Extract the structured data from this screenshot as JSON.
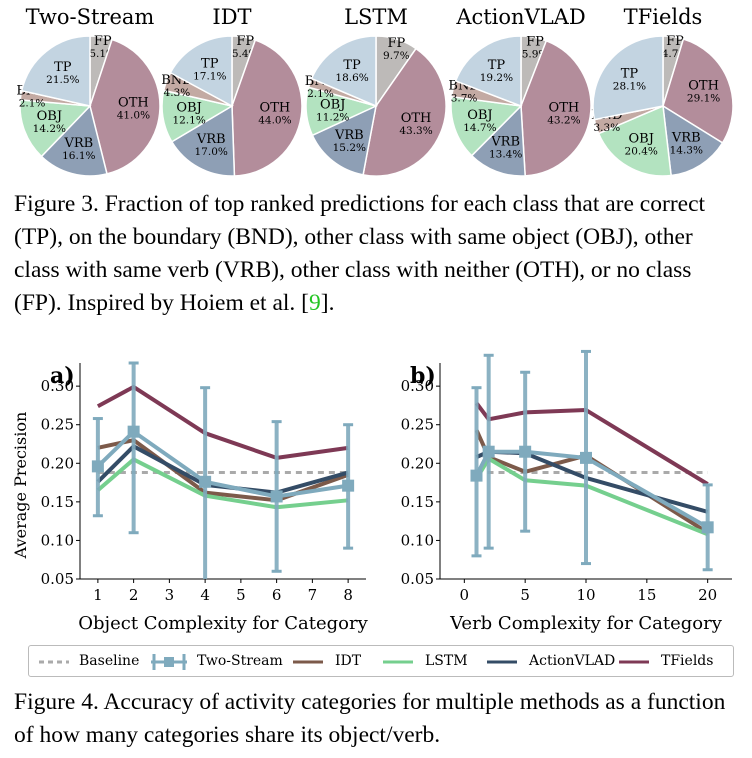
{
  "figure3": {
    "caption_label": "Figure 3.",
    "caption_text_a": " Fraction of top ranked predictions for each class that are correct (TP), on the boundary (BND), other class with same object (OBJ), other class with same verb (VRB), other class with neither (OTH), or no class (FP). Inspired by Hoiem et al. [",
    "caption_ref": "9",
    "caption_text_b": "]."
  },
  "figure4": {
    "caption_label": "Figure 4.",
    "caption_text": " Accuracy of activity categories for multiple methods as a function of how many categories share its object/verb."
  },
  "colors": {
    "TP": "#c3d4e1",
    "FP": "#bdbab8",
    "OTH": "#b38d9b",
    "VRB": "#8e9fb5",
    "OBJ": "#b3e3c0",
    "BND": "#c3aaa3",
    "Baseline": "#aaaaaa",
    "Two-Stream": "#7faabd",
    "IDT": "#7c5a4a",
    "LSTM": "#75cf8e",
    "ActionVLAD": "#344c66",
    "TFields": "#7e3955"
  },
  "chart_data": [
    {
      "type": "pie",
      "title": "Two-Stream",
      "slices": [
        {
          "label": "TP",
          "value": 21.5,
          "text": "21.5%"
        },
        {
          "label": "FP",
          "value": 5.1,
          "text": "5.1%"
        },
        {
          "label": "OTH",
          "value": 41.0,
          "text": "41.0%"
        },
        {
          "label": "VRB",
          "value": 16.1,
          "text": "16.1%"
        },
        {
          "label": "OBJ",
          "value": 14.2,
          "text": "14.2%"
        },
        {
          "label": "BND",
          "value": 2.1,
          "text": "2.1%"
        }
      ]
    },
    {
      "type": "pie",
      "title": "IDT",
      "slices": [
        {
          "label": "TP",
          "value": 17.1,
          "text": "17.1%"
        },
        {
          "label": "FP",
          "value": 5.4,
          "text": "5.4%"
        },
        {
          "label": "OTH",
          "value": 44.0,
          "text": "44.0%"
        },
        {
          "label": "VRB",
          "value": 17.0,
          "text": "17.0%"
        },
        {
          "label": "OBJ",
          "value": 12.1,
          "text": "12.1%"
        },
        {
          "label": "BND",
          "value": 4.3,
          "text": "4.3%"
        }
      ]
    },
    {
      "type": "pie",
      "title": "LSTM",
      "slices": [
        {
          "label": "TP",
          "value": 18.6,
          "text": "18.6%"
        },
        {
          "label": "FP",
          "value": 9.7,
          "text": "9.7%"
        },
        {
          "label": "OTH",
          "value": 43.3,
          "text": "43.3%"
        },
        {
          "label": "VRB",
          "value": 15.2,
          "text": "15.2%"
        },
        {
          "label": "OBJ",
          "value": 11.2,
          "text": "11.2%"
        },
        {
          "label": "BND",
          "value": 2.1,
          "text": "2.1%"
        }
      ]
    },
    {
      "type": "pie",
      "title": "ActionVLAD",
      "slices": [
        {
          "label": "TP",
          "value": 19.2,
          "text": "19.2%"
        },
        {
          "label": "FP",
          "value": 5.9,
          "text": "5.9%"
        },
        {
          "label": "OTH",
          "value": 43.2,
          "text": "43.2%"
        },
        {
          "label": "VRB",
          "value": 13.4,
          "text": "13.4%"
        },
        {
          "label": "OBJ",
          "value": 14.7,
          "text": "14.7%"
        },
        {
          "label": "BND",
          "value": 3.7,
          "text": "3.7%"
        }
      ]
    },
    {
      "type": "pie",
      "title": "TFields",
      "slices": [
        {
          "label": "TP",
          "value": 28.1,
          "text": "28.1%"
        },
        {
          "label": "FP",
          "value": 4.7,
          "text": "4.7%"
        },
        {
          "label": "OTH",
          "value": 29.1,
          "text": "29.1%"
        },
        {
          "label": "VRB",
          "value": 14.3,
          "text": "14.3%"
        },
        {
          "label": "OBJ",
          "value": 20.4,
          "text": "20.4%"
        },
        {
          "label": "BND",
          "value": 3.3,
          "text": "3.3%"
        }
      ]
    },
    {
      "type": "line",
      "panel_label": "a)",
      "xlabel": "Object Complexity for Category",
      "ylabel": "Average Precision",
      "xlim": [
        0.5,
        8.5
      ],
      "ylim": [
        0.05,
        0.33
      ],
      "xticks": [
        1,
        2,
        3,
        4,
        5,
        6,
        7,
        8
      ],
      "yticks": [
        0.05,
        0.1,
        0.15,
        0.2,
        0.25,
        0.3
      ],
      "ytick_labels": [
        "0.05",
        "0.10",
        "0.15",
        "0.20",
        "0.25",
        "0.30"
      ],
      "x": [
        1,
        2,
        4,
        6,
        8
      ],
      "baseline": 0.188,
      "series": [
        {
          "name": "TFields",
          "values": [
            0.274,
            0.299,
            0.239,
            0.207,
            0.22
          ]
        },
        {
          "name": "IDT",
          "values": [
            0.22,
            0.23,
            0.162,
            0.152,
            0.185
          ]
        },
        {
          "name": "LSTM",
          "values": [
            0.165,
            0.205,
            0.158,
            0.143,
            0.152
          ]
        },
        {
          "name": "ActionVLAD",
          "values": [
            0.176,
            0.222,
            0.172,
            0.162,
            0.188
          ]
        },
        {
          "name": "Two-Stream",
          "values": [
            0.196,
            0.241,
            0.176,
            0.157,
            0.171
          ],
          "err_low": [
            0.132,
            0.11,
            0.04,
            0.06,
            0.09
          ],
          "err_high": [
            0.258,
            0.33,
            0.298,
            0.254,
            0.25
          ]
        }
      ]
    },
    {
      "type": "line",
      "panel_label": "b)",
      "xlabel": "Verb Complexity for Category",
      "ylabel": "",
      "xlim": [
        -2,
        22
      ],
      "ylim": [
        0.05,
        0.33
      ],
      "xticks": [
        0,
        5,
        10,
        15,
        20
      ],
      "yticks": [
        0.05,
        0.1,
        0.15,
        0.2,
        0.25,
        0.3
      ],
      "ytick_labels": [
        "0.05",
        "0.10",
        "0.15",
        "0.20",
        "0.25",
        "0.30"
      ],
      "x": [
        1,
        2,
        5,
        10,
        20
      ],
      "baseline": 0.188,
      "series": [
        {
          "name": "TFields",
          "values": [
            0.278,
            0.257,
            0.266,
            0.269,
            0.173
          ]
        },
        {
          "name": "IDT",
          "values": [
            0.243,
            0.208,
            0.189,
            0.21,
            0.11
          ]
        },
        {
          "name": "LSTM",
          "values": [
            0.18,
            0.206,
            0.178,
            0.171,
            0.108
          ]
        },
        {
          "name": "ActionVLAD",
          "values": [
            0.208,
            0.215,
            0.213,
            0.181,
            0.137
          ]
        },
        {
          "name": "Two-Stream",
          "values": [
            0.184,
            0.215,
            0.215,
            0.207,
            0.117
          ],
          "err_low": [
            0.08,
            0.09,
            0.112,
            0.07,
            0.062
          ],
          "err_high": [
            0.298,
            0.34,
            0.318,
            0.345,
            0.172
          ]
        }
      ]
    }
  ],
  "legend": [
    {
      "name": "Baseline",
      "style": "dashed"
    },
    {
      "name": "Two-Stream",
      "style": "errorbar"
    },
    {
      "name": "IDT",
      "style": "solid"
    },
    {
      "name": "LSTM",
      "style": "solid"
    },
    {
      "name": "ActionVLAD",
      "style": "solid"
    },
    {
      "name": "TFields",
      "style": "solid"
    }
  ]
}
